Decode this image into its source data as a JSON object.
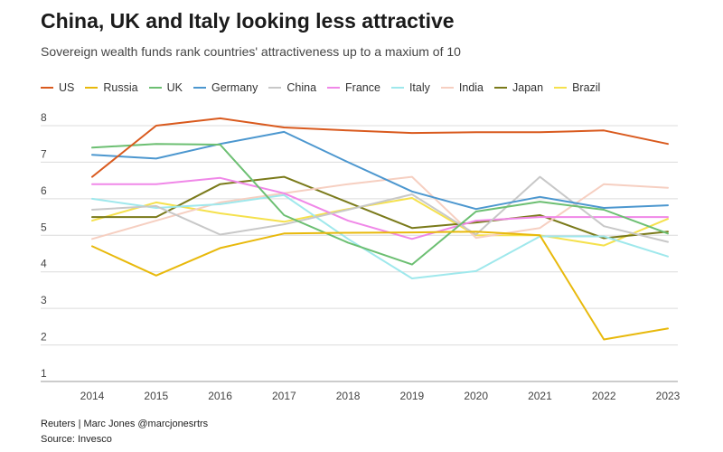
{
  "header": {
    "title": "China, UK and Italy looking less attractive",
    "subtitle": "Sovereign wealth funds rank countries' attractiveness up to a maxium of 10"
  },
  "footer": {
    "credit": "Reuters | Marc Jones @marcjonesrtrs",
    "source": "Source: Invesco"
  },
  "chart_data": {
    "type": "line",
    "title": "China, UK and Italy looking less attractive",
    "subtitle": "Sovereign wealth funds rank countries' attractiveness up to a maxium of 10",
    "xlabel": "",
    "ylabel": "",
    "x": [
      2014,
      2015,
      2016,
      2017,
      2018,
      2019,
      2020,
      2021,
      2022,
      2023
    ],
    "ylim": [
      1,
      8
    ],
    "yticks": [
      1,
      2,
      3,
      4,
      5,
      6,
      7,
      8
    ],
    "grid": "horizontal",
    "legend": "top-left",
    "series": [
      {
        "name": "US",
        "color": "#d95a1e",
        "values": [
          6.6,
          8.0,
          8.2,
          7.95,
          7.87,
          7.8,
          7.82,
          7.82,
          7.87,
          7.5
        ]
      },
      {
        "name": "Russia",
        "color": "#e8b90c",
        "values": [
          4.7,
          3.9,
          4.65,
          5.05,
          5.07,
          5.08,
          5.1,
          5.0,
          2.15,
          2.45
        ]
      },
      {
        "name": "UK",
        "color": "#6cbf72",
        "values": [
          7.4,
          7.5,
          7.48,
          5.55,
          4.8,
          4.2,
          5.65,
          5.92,
          5.7,
          5.05
        ]
      },
      {
        "name": "Germany",
        "color": "#4c97cf",
        "values": [
          7.2,
          7.1,
          7.5,
          7.83,
          7.0,
          6.2,
          5.72,
          6.05,
          5.75,
          5.82
        ]
      },
      {
        "name": "China",
        "color": "#c8c8c8",
        "values": [
          5.7,
          5.8,
          5.02,
          5.3,
          5.7,
          6.12,
          5.02,
          6.6,
          5.25,
          4.82
        ]
      },
      {
        "name": "France",
        "color": "#f088e8",
        "values": [
          6.4,
          6.4,
          6.57,
          6.15,
          5.4,
          4.9,
          5.4,
          5.5,
          5.5,
          5.5
        ]
      },
      {
        "name": "Italy",
        "color": "#9fe8ec",
        "values": [
          6.0,
          5.75,
          5.85,
          6.1,
          4.9,
          3.82,
          4.02,
          4.97,
          4.97,
          4.42
        ]
      },
      {
        "name": "India",
        "color": "#f6cfc1",
        "values": [
          4.9,
          5.4,
          5.9,
          6.15,
          6.4,
          6.6,
          4.93,
          5.2,
          6.4,
          6.3
        ]
      },
      {
        "name": "Japan",
        "color": "#7a7a1a",
        "values": [
          5.5,
          5.5,
          6.4,
          6.6,
          5.9,
          5.2,
          5.35,
          5.55,
          4.92,
          5.1
        ]
      },
      {
        "name": "Brazil",
        "color": "#f5e14d",
        "values": [
          5.4,
          5.9,
          5.6,
          5.37,
          5.72,
          6.02,
          5.0,
          5.0,
          4.72,
          5.45
        ]
      }
    ]
  }
}
